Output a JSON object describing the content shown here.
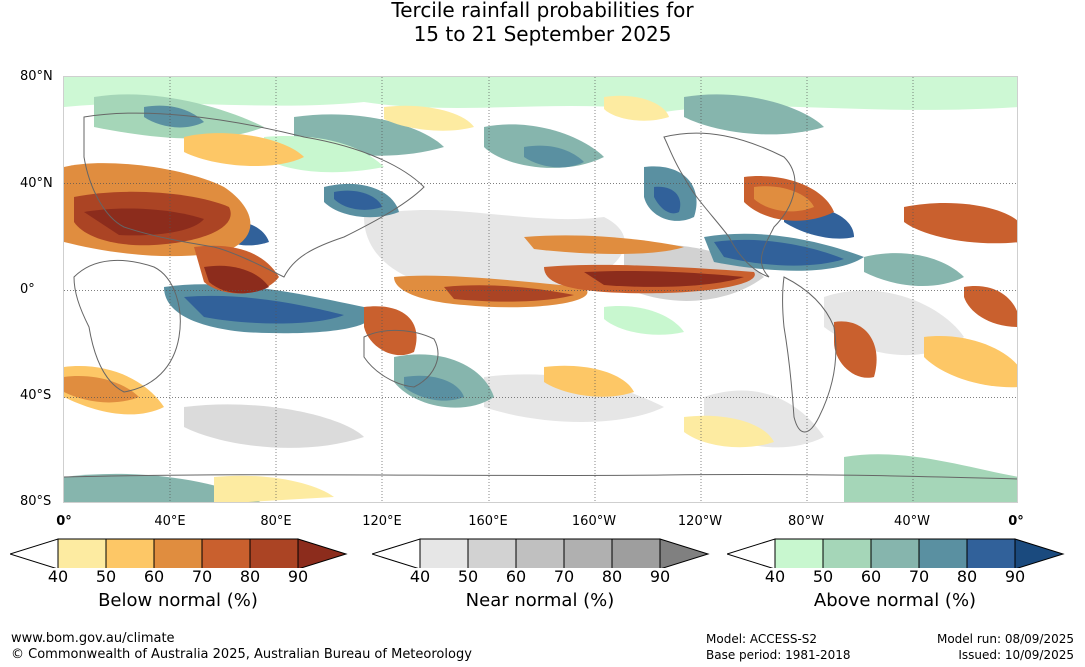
{
  "title": {
    "line1": "Tercile rainfall probabilities for",
    "line2": "15 to 21 September 2025"
  },
  "map": {
    "lat_labels": [
      "80°N",
      "40°N",
      "0°",
      "40°S",
      "80°S"
    ],
    "lon_labels": [
      "0°",
      "40°E",
      "80°E",
      "120°E",
      "160°E",
      "160°W",
      "120°W",
      "80°W",
      "40°W",
      "0°"
    ]
  },
  "legends": [
    {
      "caption": "Below normal (%)",
      "ticks": [
        "40",
        "50",
        "60",
        "70",
        "80",
        "90"
      ],
      "colors": [
        "#ffffff",
        "#fdeba1",
        "#fdc766",
        "#e08d3f",
        "#c9602e",
        "#ab4424",
        "#8c2c1c"
      ]
    },
    {
      "caption": "Near normal (%)",
      "ticks": [
        "40",
        "50",
        "60",
        "70",
        "80",
        "90"
      ],
      "colors": [
        "#ffffff",
        "#e6e6e6",
        "#d2d2d2",
        "#c0c0c0",
        "#b0b0b0",
        "#9e9e9e",
        "#808080"
      ]
    },
    {
      "caption": "Above normal (%)",
      "ticks": [
        "40",
        "50",
        "60",
        "70",
        "80",
        "90"
      ],
      "colors": [
        "#ffffff",
        "#c8f7cf",
        "#a5d6b8",
        "#86b5ad",
        "#5a90a1",
        "#31619a",
        "#1a4a7e"
      ]
    }
  ],
  "footer": {
    "url": "www.bom.gov.au/climate",
    "copyright": "© Commonwealth of Australia 2025, Australian Bureau of Meteorology",
    "model": "Model: ACCESS-S2",
    "base_period": "Base period: 1981-2018",
    "model_run": "Model run: 08/09/2025",
    "issued": "Issued: 10/09/2025"
  }
}
